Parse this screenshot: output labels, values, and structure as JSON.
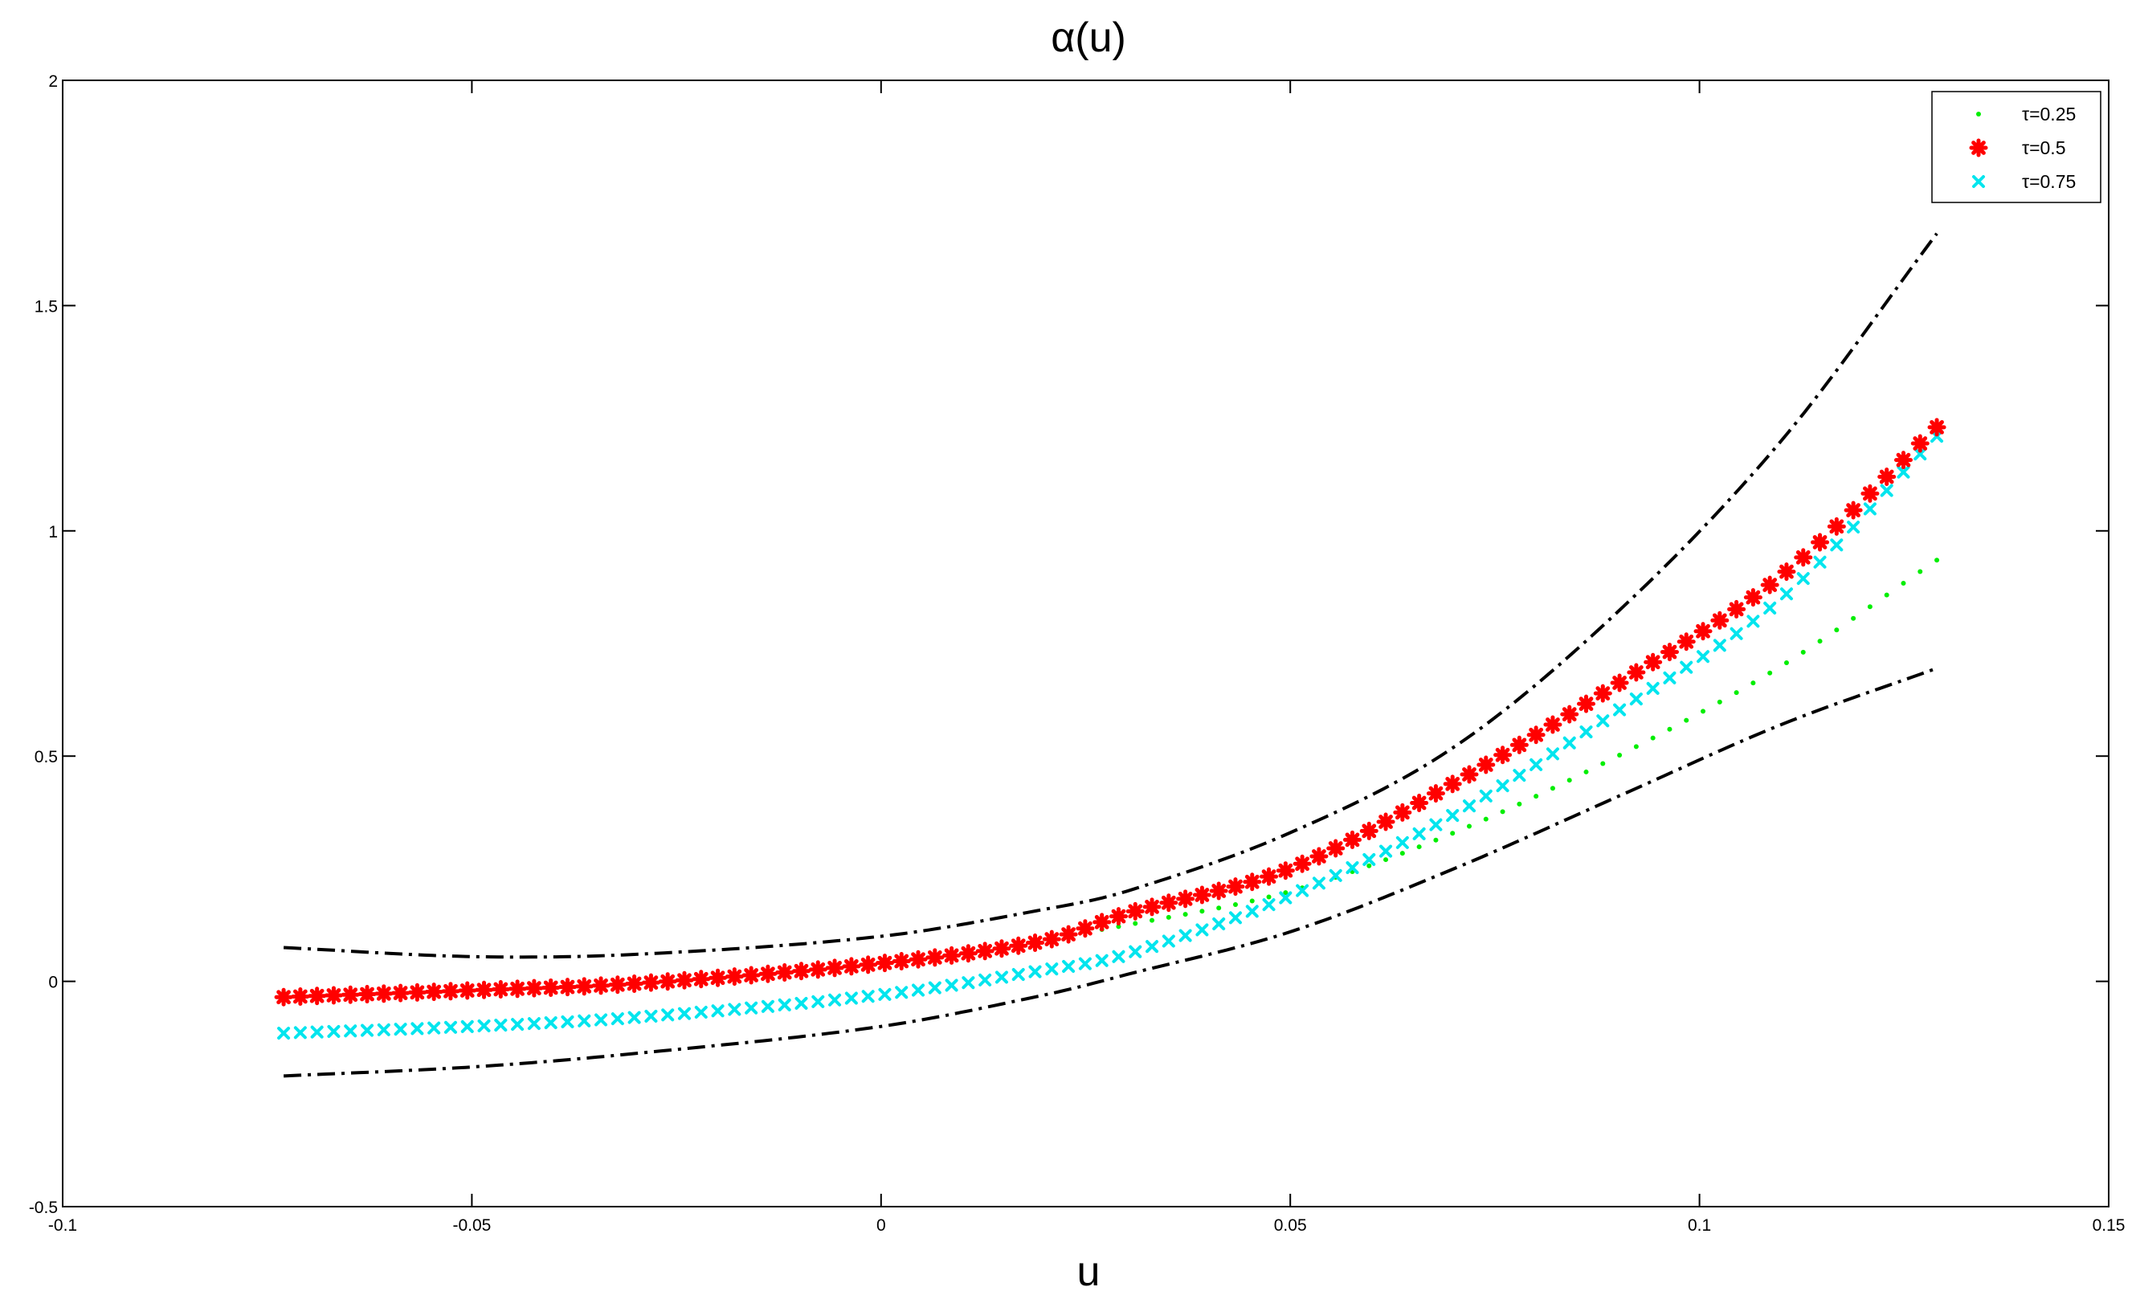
{
  "chart_data": {
    "type": "scatter",
    "title": "α(u)",
    "xlabel": "u",
    "ylabel": "",
    "xlim": [
      -0.1,
      0.15
    ],
    "ylim": [
      -0.5,
      2
    ],
    "xticks": [
      -0.1,
      -0.05,
      0,
      0.05,
      0.1,
      0.15
    ],
    "xtick_labels": [
      "-0.1",
      "-0.05",
      "0",
      "0.05",
      "0.1",
      "0.15"
    ],
    "yticks": [
      -0.5,
      0,
      0.5,
      1,
      1.5,
      2
    ],
    "ytick_labels": [
      "-0.5",
      "0",
      "0.5",
      "1",
      "1.5",
      "2"
    ],
    "grid": false,
    "legend_position": "top-right",
    "x_range": [
      -0.073,
      0.129
    ],
    "n_points": 100,
    "series": [
      {
        "name": "τ=0.25",
        "marker": "dot",
        "color": "#00ee00",
        "x": [
          -0.073,
          -0.05,
          -0.03,
          0.0,
          0.02,
          0.03,
          0.05,
          0.07,
          0.09,
          0.11,
          0.129
        ],
        "values": [
          -0.025,
          -0.02,
          -0.008,
          0.04,
          0.095,
          0.125,
          0.2,
          0.33,
          0.5,
          0.7,
          0.935
        ]
      },
      {
        "name": "τ=0.5",
        "marker": "asterisk",
        "color": "#ff0000",
        "x": [
          -0.073,
          -0.05,
          -0.03,
          0.0,
          0.02,
          0.03,
          0.05,
          0.07,
          0.09,
          0.11,
          0.129
        ],
        "values": [
          -0.035,
          -0.02,
          -0.005,
          0.04,
          0.09,
          0.15,
          0.25,
          0.44,
          0.66,
          0.9,
          1.23
        ]
      },
      {
        "name": "τ=0.75",
        "marker": "x",
        "color": "#00e5ee",
        "x": [
          -0.073,
          -0.05,
          -0.03,
          0.0,
          0.02,
          0.03,
          0.05,
          0.07,
          0.09,
          0.11,
          0.129
        ],
        "values": [
          -0.115,
          -0.1,
          -0.08,
          -0.03,
          0.025,
          0.06,
          0.19,
          0.37,
          0.6,
          0.85,
          1.21
        ]
      },
      {
        "name": "",
        "line": "dash-dot",
        "color": "#000000",
        "x": [
          -0.073,
          -0.05,
          -0.03,
          0.0,
          0.02,
          0.03,
          0.05,
          0.07,
          0.09,
          0.11,
          0.129
        ],
        "values": [
          0.075,
          0.055,
          0.06,
          0.1,
          0.16,
          0.2,
          0.33,
          0.52,
          0.82,
          1.2,
          1.66
        ]
      },
      {
        "name": "",
        "line": "dash-dot",
        "color": "#000000",
        "x": [
          -0.073,
          -0.05,
          -0.03,
          0.0,
          0.02,
          0.03,
          0.05,
          0.07,
          0.09,
          0.11,
          0.129
        ],
        "values": [
          -0.21,
          -0.19,
          -0.16,
          -0.1,
          -0.03,
          0.015,
          0.11,
          0.25,
          0.41,
          0.57,
          0.695
        ]
      }
    ]
  }
}
